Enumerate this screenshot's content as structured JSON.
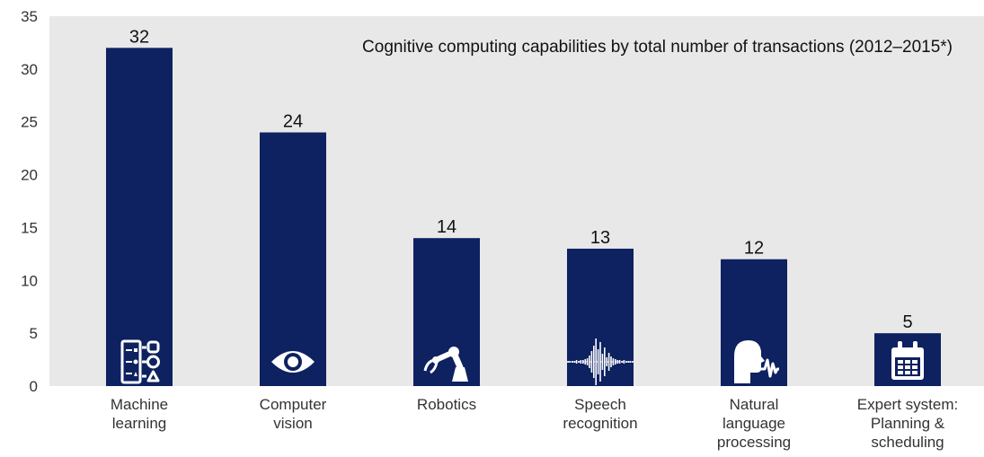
{
  "chart_data": {
    "type": "bar",
    "title": "Cognitive computing capabilities by total number of transactions (2012–2015*)",
    "xlabel": "",
    "ylabel": "",
    "ylim": [
      0,
      35
    ],
    "yticks": [
      0,
      5,
      10,
      15,
      20,
      25,
      30,
      35
    ],
    "grid": false,
    "legend": "none",
    "bar_color": "#0e2160",
    "categories": [
      {
        "lines": [
          "Machine",
          "learning"
        ],
        "icon": "machine-learning-icon"
      },
      {
        "lines": [
          "Computer",
          "vision"
        ],
        "icon": "eye-icon"
      },
      {
        "lines": [
          "Robotics"
        ],
        "icon": "robot-arm-icon"
      },
      {
        "lines": [
          "Speech",
          "recognition"
        ],
        "icon": "sound-wave-icon"
      },
      {
        "lines": [
          "Natural",
          "language",
          "processing"
        ],
        "icon": "speaking-head-icon"
      },
      {
        "lines": [
          "Expert system:",
          "Planning &",
          "scheduling"
        ],
        "icon": "calendar-icon"
      }
    ],
    "values": [
      32,
      24,
      14,
      13,
      12,
      5
    ]
  }
}
